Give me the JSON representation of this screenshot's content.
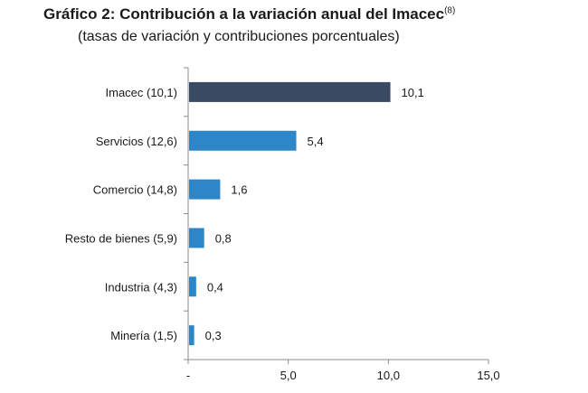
{
  "chart_data": {
    "type": "bar",
    "orientation": "horizontal",
    "title": "Gráfico 2: Contribución a la variación anual del Imacec",
    "title_note": "(8)",
    "subtitle": "(tasas de variación y contribuciones porcentuales)",
    "categories": [
      "Imacec (10,1)",
      "Servicios (12,6)",
      "Comercio (14,8)",
      "Resto de bienes (5,9)",
      "Industria (4,3)",
      "Minería (1,5)"
    ],
    "values": [
      10.1,
      5.4,
      1.6,
      0.8,
      0.4,
      0.3
    ],
    "value_labels": [
      "10,1",
      "5,4",
      "1,6",
      "0,8",
      "0,4",
      "0,3"
    ],
    "colors": [
      "#3b4a63",
      "#2e86c8",
      "#2e86c8",
      "#2e86c8",
      "#2e86c8",
      "#2e86c8"
    ],
    "xlim": [
      0,
      15
    ],
    "xticks": [
      0,
      5,
      10,
      15
    ],
    "xtick_labels": [
      "-",
      "5,0",
      "10,0",
      "15,0"
    ],
    "xlabel": "",
    "ylabel": "",
    "grid": false,
    "legend": "none"
  }
}
